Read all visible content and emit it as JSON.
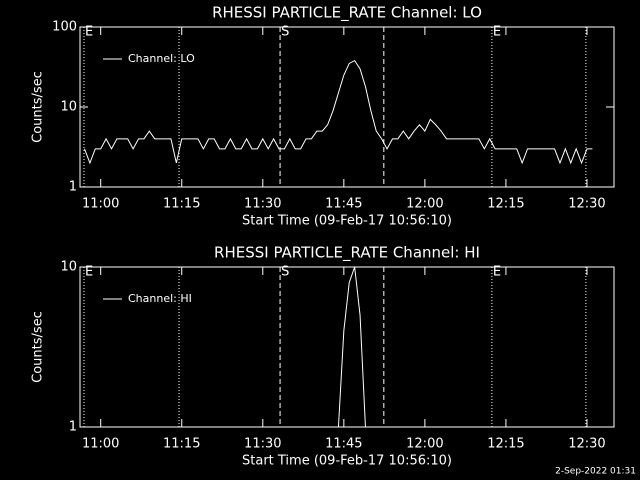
{
  "chart_data": [
    {
      "type": "line",
      "title": "RHESSI PARTICLE_RATE Channel: LO",
      "xlabel": "Start Time (09-Feb-17 10:56:10)",
      "ylabel": "Counts/sec",
      "log_y": true,
      "xlim": [
        656.17,
        755
      ],
      "ylim": [
        1,
        100
      ],
      "yticks": [
        1,
        10,
        100
      ],
      "xticks": [
        {
          "value": 660,
          "label": "11:00"
        },
        {
          "value": 675,
          "label": "11:15"
        },
        {
          "value": 690,
          "label": "11:30"
        },
        {
          "value": 705,
          "label": "11:45"
        },
        {
          "value": 720,
          "label": "12:00"
        },
        {
          "value": 735,
          "label": "12:15"
        },
        {
          "value": 750,
          "label": "12:30"
        }
      ],
      "markers": [
        {
          "x": 656.9,
          "style": "dotted",
          "label": "E"
        },
        {
          "x": 674.5,
          "style": "dotted"
        },
        {
          "x": 693.2,
          "style": "dashed",
          "label": "S"
        },
        {
          "x": 712.4,
          "style": "dashed"
        },
        {
          "x": 732.4,
          "style": "dotted",
          "label": "E"
        },
        {
          "x": 749.8,
          "style": "dotted"
        }
      ],
      "x": [
        657,
        658,
        659,
        660,
        661,
        662,
        663,
        664,
        665,
        666,
        667,
        668,
        669,
        670,
        671,
        672,
        673,
        674,
        675,
        676,
        677,
        678,
        679,
        680,
        681,
        682,
        683,
        684,
        685,
        686,
        687,
        688,
        689,
        690,
        691,
        692,
        693,
        694,
        695,
        696,
        697,
        698,
        699,
        700,
        701,
        702,
        703,
        704,
        705,
        706,
        707,
        708,
        709,
        710,
        711,
        712,
        713,
        714,
        715,
        716,
        717,
        718,
        719,
        720,
        721,
        722,
        723,
        724,
        725,
        726,
        727,
        728,
        729,
        730,
        731,
        732,
        733,
        734,
        735,
        736,
        737,
        738,
        739,
        740,
        741,
        742,
        743,
        744,
        745,
        746,
        747,
        748,
        749,
        750,
        751
      ],
      "series": [
        {
          "name": "Channel: LO",
          "color": "#ffffff",
          "values": [
            3,
            2,
            3,
            3,
            4,
            3,
            4,
            4,
            4,
            3,
            4,
            4,
            5,
            4,
            4,
            4,
            4,
            2,
            4,
            4,
            4,
            4,
            3,
            4,
            4,
            3,
            3,
            4,
            3,
            3,
            4,
            3,
            3,
            4,
            3,
            4,
            3,
            3,
            4,
            3,
            3,
            4,
            4,
            5,
            5,
            6,
            9,
            15,
            25,
            35,
            38,
            30,
            18,
            9,
            5,
            4,
            3,
            4,
            4,
            5,
            4,
            5,
            6,
            5,
            7,
            6,
            5,
            4,
            4,
            4,
            4,
            4,
            4,
            4,
            3,
            4,
            3,
            3,
            3,
            3,
            3,
            2,
            3,
            3,
            3,
            3,
            3,
            3,
            2,
            3,
            2,
            3,
            2,
            3,
            3
          ]
        }
      ]
    },
    {
      "type": "line",
      "title": "RHESSI PARTICLE_RATE Channel: HI",
      "xlabel": "Start Time (09-Feb-17 10:56:10)",
      "ylabel": "Counts/sec",
      "log_y": true,
      "xlim": [
        656.17,
        755
      ],
      "ylim": [
        1,
        10
      ],
      "yticks": [
        1,
        10
      ],
      "xticks": [
        {
          "value": 660,
          "label": "11:00"
        },
        {
          "value": 675,
          "label": "11:15"
        },
        {
          "value": 690,
          "label": "11:30"
        },
        {
          "value": 705,
          "label": "11:45"
        },
        {
          "value": 720,
          "label": "12:00"
        },
        {
          "value": 735,
          "label": "12:15"
        },
        {
          "value": 750,
          "label": "12:30"
        }
      ],
      "markers": [
        {
          "x": 656.9,
          "style": "dotted",
          "label": "E"
        },
        {
          "x": 674.5,
          "style": "dotted"
        },
        {
          "x": 693.2,
          "style": "dashed",
          "label": "S"
        },
        {
          "x": 712.4,
          "style": "dashed"
        },
        {
          "x": 732.4,
          "style": "dotted",
          "label": "E"
        },
        {
          "x": 749.8,
          "style": "dotted"
        }
      ],
      "x": [
        704,
        705,
        706,
        707,
        708,
        709
      ],
      "series": [
        {
          "name": "Channel: HI",
          "color": "#ffffff",
          "values": [
            1,
            4,
            8,
            10,
            5,
            1
          ]
        }
      ]
    }
  ],
  "footer": "2-Sep-2022 01:31"
}
